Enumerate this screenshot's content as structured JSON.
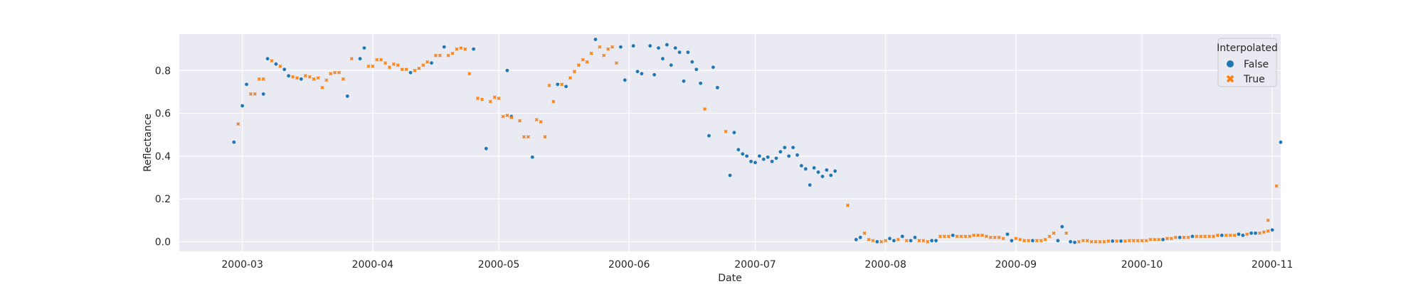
{
  "chart_data": {
    "type": "scatter",
    "title": "",
    "xlabel": "Date",
    "ylabel": "Reflectance",
    "xlim": [
      "2000-02-15",
      "2000-11-03"
    ],
    "ylim": [
      -0.045,
      0.97
    ],
    "grid": true,
    "x_ticks": [
      "2000-03",
      "2000-04",
      "2000-05",
      "2000-06",
      "2000-07",
      "2000-08",
      "2000-09",
      "2000-10",
      "2000-11"
    ],
    "y_ticks": [
      "0.0",
      "0.2",
      "0.4",
      "0.6",
      "0.8"
    ],
    "legend": {
      "title": "Interpolated",
      "position": "top-right"
    },
    "series": [
      {
        "name": "False",
        "color": "#1f77b4",
        "marker": "circle",
        "points": [
          [
            "2000-02-28",
            0.465
          ],
          [
            "2000-03-01",
            0.635
          ],
          [
            "2000-03-02",
            0.735
          ],
          [
            "2000-03-06",
            0.69
          ],
          [
            "2000-03-07",
            0.855
          ],
          [
            "2000-03-09",
            0.83
          ],
          [
            "2000-03-11",
            0.805
          ],
          [
            "2000-03-12",
            0.775
          ],
          [
            "2000-03-15",
            0.76
          ],
          [
            "2000-03-26",
            0.68
          ],
          [
            "2000-03-29",
            0.855
          ],
          [
            "2000-03-30",
            0.905
          ],
          [
            "2000-04-10",
            0.79
          ],
          [
            "2000-04-15",
            0.835
          ],
          [
            "2000-04-18",
            0.91
          ],
          [
            "2000-04-25",
            0.9
          ],
          [
            "2000-04-28",
            0.435
          ],
          [
            "2000-05-03",
            0.8
          ],
          [
            "2000-05-04",
            0.585
          ],
          [
            "2000-05-09",
            0.395
          ],
          [
            "2000-05-15",
            0.735
          ],
          [
            "2000-05-17",
            0.725
          ],
          [
            "2000-05-24",
            0.945
          ],
          [
            "2000-05-30",
            0.91
          ],
          [
            "2000-05-31",
            0.755
          ],
          [
            "2000-06-02",
            0.915
          ],
          [
            "2000-06-03",
            0.795
          ],
          [
            "2000-06-04",
            0.785
          ],
          [
            "2000-06-06",
            0.915
          ],
          [
            "2000-06-07",
            0.78
          ],
          [
            "2000-06-08",
            0.905
          ],
          [
            "2000-06-09",
            0.855
          ],
          [
            "2000-06-10",
            0.92
          ],
          [
            "2000-06-11",
            0.825
          ],
          [
            "2000-06-12",
            0.905
          ],
          [
            "2000-06-13",
            0.885
          ],
          [
            "2000-06-14",
            0.75
          ],
          [
            "2000-06-15",
            0.885
          ],
          [
            "2000-06-16",
            0.84
          ],
          [
            "2000-06-17",
            0.805
          ],
          [
            "2000-06-18",
            0.74
          ],
          [
            "2000-06-20",
            0.495
          ],
          [
            "2000-06-21",
            0.815
          ],
          [
            "2000-06-22",
            0.72
          ],
          [
            "2000-06-25",
            0.31
          ],
          [
            "2000-06-26",
            0.51
          ],
          [
            "2000-06-27",
            0.43
          ],
          [
            "2000-06-28",
            0.41
          ],
          [
            "2000-06-29",
            0.4
          ],
          [
            "2000-06-30",
            0.375
          ],
          [
            "2000-07-01",
            0.37
          ],
          [
            "2000-07-02",
            0.4
          ],
          [
            "2000-07-03",
            0.385
          ],
          [
            "2000-07-04",
            0.395
          ],
          [
            "2000-07-05",
            0.375
          ],
          [
            "2000-07-06",
            0.39
          ],
          [
            "2000-07-07",
            0.42
          ],
          [
            "2000-07-08",
            0.44
          ],
          [
            "2000-07-09",
            0.4
          ],
          [
            "2000-07-10",
            0.44
          ],
          [
            "2000-07-11",
            0.405
          ],
          [
            "2000-07-12",
            0.355
          ],
          [
            "2000-07-13",
            0.34
          ],
          [
            "2000-07-14",
            0.265
          ],
          [
            "2000-07-15",
            0.345
          ],
          [
            "2000-07-16",
            0.325
          ],
          [
            "2000-07-17",
            0.305
          ],
          [
            "2000-07-18",
            0.335
          ],
          [
            "2000-07-19",
            0.31
          ],
          [
            "2000-07-20",
            0.33
          ],
          [
            "2000-07-25",
            0.01
          ],
          [
            "2000-07-26",
            0.02
          ],
          [
            "2000-07-30",
            0.0
          ],
          [
            "2000-08-02",
            0.015
          ],
          [
            "2000-08-03",
            0.005
          ],
          [
            "2000-08-05",
            0.025
          ],
          [
            "2000-08-07",
            0.005
          ],
          [
            "2000-08-08",
            0.02
          ],
          [
            "2000-08-12",
            0.005
          ],
          [
            "2000-08-13",
            0.005
          ],
          [
            "2000-08-17",
            0.03
          ],
          [
            "2000-08-30",
            0.035
          ],
          [
            "2000-08-31",
            0.005
          ],
          [
            "2000-09-05",
            0.005
          ],
          [
            "2000-09-11",
            0.005
          ],
          [
            "2000-09-12",
            0.07
          ],
          [
            "2000-09-14",
            0.0
          ],
          [
            "2000-09-15",
            -0.003
          ],
          [
            "2000-09-24",
            0.003
          ],
          [
            "2000-09-26",
            0.003
          ],
          [
            "2000-10-06",
            0.01
          ],
          [
            "2000-10-10",
            0.02
          ],
          [
            "2000-10-13",
            0.025
          ],
          [
            "2000-10-20",
            0.03
          ],
          [
            "2000-10-24",
            0.035
          ],
          [
            "2000-10-25",
            0.03
          ],
          [
            "2000-10-27",
            0.04
          ],
          [
            "2000-10-28",
            0.04
          ],
          [
            "2000-11-01",
            0.055
          ],
          [
            "2000-11-03",
            0.465
          ]
        ]
      },
      {
        "name": "True",
        "color": "#ff7f0e",
        "marker": "x",
        "points": [
          [
            "2000-02-29",
            0.55
          ],
          [
            "2000-03-03",
            0.69
          ],
          [
            "2000-03-04",
            0.69
          ],
          [
            "2000-03-05",
            0.76
          ],
          [
            "2000-03-06",
            0.76
          ],
          [
            "2000-03-08",
            0.845
          ],
          [
            "2000-03-10",
            0.82
          ],
          [
            "2000-03-13",
            0.77
          ],
          [
            "2000-03-14",
            0.765
          ],
          [
            "2000-03-16",
            0.775
          ],
          [
            "2000-03-17",
            0.77
          ],
          [
            "2000-03-18",
            0.76
          ],
          [
            "2000-03-19",
            0.765
          ],
          [
            "2000-03-20",
            0.72
          ],
          [
            "2000-03-21",
            0.755
          ],
          [
            "2000-03-22",
            0.785
          ],
          [
            "2000-03-23",
            0.79
          ],
          [
            "2000-03-24",
            0.79
          ],
          [
            "2000-03-25",
            0.76
          ],
          [
            "2000-03-27",
            0.855
          ],
          [
            "2000-03-31",
            0.82
          ],
          [
            "2000-04-01",
            0.82
          ],
          [
            "2000-04-02",
            0.85
          ],
          [
            "2000-04-03",
            0.85
          ],
          [
            "2000-04-04",
            0.835
          ],
          [
            "2000-04-05",
            0.815
          ],
          [
            "2000-04-06",
            0.83
          ],
          [
            "2000-04-07",
            0.825
          ],
          [
            "2000-04-08",
            0.805
          ],
          [
            "2000-04-09",
            0.805
          ],
          [
            "2000-04-11",
            0.8
          ],
          [
            "2000-04-12",
            0.81
          ],
          [
            "2000-04-13",
            0.825
          ],
          [
            "2000-04-14",
            0.84
          ],
          [
            "2000-04-16",
            0.87
          ],
          [
            "2000-04-17",
            0.87
          ],
          [
            "2000-04-19",
            0.87
          ],
          [
            "2000-04-20",
            0.88
          ],
          [
            "2000-04-21",
            0.9
          ],
          [
            "2000-04-22",
            0.905
          ],
          [
            "2000-04-23",
            0.9
          ],
          [
            "2000-04-24",
            0.785
          ],
          [
            "2000-04-26",
            0.67
          ],
          [
            "2000-04-27",
            0.665
          ],
          [
            "2000-04-29",
            0.655
          ],
          [
            "2000-04-30",
            0.675
          ],
          [
            "2000-05-01",
            0.67
          ],
          [
            "2000-05-02",
            0.585
          ],
          [
            "2000-05-03",
            0.59
          ],
          [
            "2000-05-04",
            0.58
          ],
          [
            "2000-05-06",
            0.565
          ],
          [
            "2000-05-07",
            0.49
          ],
          [
            "2000-05-08",
            0.49
          ],
          [
            "2000-05-10",
            0.57
          ],
          [
            "2000-05-11",
            0.56
          ],
          [
            "2000-05-12",
            0.49
          ],
          [
            "2000-05-13",
            0.73
          ],
          [
            "2000-05-14",
            0.655
          ],
          [
            "2000-05-16",
            0.735
          ],
          [
            "2000-05-18",
            0.765
          ],
          [
            "2000-05-19",
            0.795
          ],
          [
            "2000-05-20",
            0.825
          ],
          [
            "2000-05-21",
            0.85
          ],
          [
            "2000-05-22",
            0.84
          ],
          [
            "2000-05-23",
            0.88
          ],
          [
            "2000-05-25",
            0.91
          ],
          [
            "2000-05-26",
            0.87
          ],
          [
            "2000-05-27",
            0.9
          ],
          [
            "2000-05-28",
            0.91
          ],
          [
            "2000-05-29",
            0.835
          ],
          [
            "2000-06-19",
            0.62
          ],
          [
            "2000-06-24",
            0.515
          ],
          [
            "2000-07-23",
            0.17
          ],
          [
            "2000-07-27",
            0.04
          ],
          [
            "2000-07-28",
            0.01
          ],
          [
            "2000-07-29",
            0.005
          ],
          [
            "2000-07-31",
            0.0
          ],
          [
            "2000-08-01",
            0.005
          ],
          [
            "2000-08-04",
            0.01
          ],
          [
            "2000-08-06",
            0.005
          ],
          [
            "2000-08-09",
            0.005
          ],
          [
            "2000-08-10",
            0.005
          ],
          [
            "2000-08-11",
            0.0
          ],
          [
            "2000-08-14",
            0.025
          ],
          [
            "2000-08-15",
            0.025
          ],
          [
            "2000-08-16",
            0.025
          ],
          [
            "2000-08-18",
            0.025
          ],
          [
            "2000-08-19",
            0.025
          ],
          [
            "2000-08-20",
            0.025
          ],
          [
            "2000-08-21",
            0.025
          ],
          [
            "2000-08-22",
            0.03
          ],
          [
            "2000-08-23",
            0.03
          ],
          [
            "2000-08-24",
            0.03
          ],
          [
            "2000-08-25",
            0.025
          ],
          [
            "2000-08-26",
            0.02
          ],
          [
            "2000-08-27",
            0.02
          ],
          [
            "2000-08-28",
            0.02
          ],
          [
            "2000-08-29",
            0.015
          ],
          [
            "2000-09-01",
            0.015
          ],
          [
            "2000-09-02",
            0.01
          ],
          [
            "2000-09-03",
            0.005
          ],
          [
            "2000-09-04",
            0.005
          ],
          [
            "2000-09-06",
            0.005
          ],
          [
            "2000-09-07",
            0.005
          ],
          [
            "2000-09-08",
            0.01
          ],
          [
            "2000-09-09",
            0.025
          ],
          [
            "2000-09-10",
            0.04
          ],
          [
            "2000-09-13",
            0.04
          ],
          [
            "2000-09-16",
            0.0
          ],
          [
            "2000-09-17",
            0.005
          ],
          [
            "2000-09-18",
            0.005
          ],
          [
            "2000-09-19",
            0.0
          ],
          [
            "2000-09-20",
            0.0
          ],
          [
            "2000-09-21",
            0.0
          ],
          [
            "2000-09-22",
            0.0
          ],
          [
            "2000-09-23",
            0.003
          ],
          [
            "2000-09-25",
            0.003
          ],
          [
            "2000-09-27",
            0.003
          ],
          [
            "2000-09-28",
            0.005
          ],
          [
            "2000-09-29",
            0.005
          ],
          [
            "2000-09-30",
            0.005
          ],
          [
            "2000-10-01",
            0.005
          ],
          [
            "2000-10-02",
            0.005
          ],
          [
            "2000-10-03",
            0.01
          ],
          [
            "2000-10-04",
            0.01
          ],
          [
            "2000-10-05",
            0.01
          ],
          [
            "2000-10-07",
            0.015
          ],
          [
            "2000-10-08",
            0.015
          ],
          [
            "2000-10-09",
            0.02
          ],
          [
            "2000-10-11",
            0.02
          ],
          [
            "2000-10-12",
            0.02
          ],
          [
            "2000-10-14",
            0.025
          ],
          [
            "2000-10-15",
            0.025
          ],
          [
            "2000-10-16",
            0.025
          ],
          [
            "2000-10-17",
            0.025
          ],
          [
            "2000-10-18",
            0.025
          ],
          [
            "2000-10-19",
            0.03
          ],
          [
            "2000-10-21",
            0.03
          ],
          [
            "2000-10-22",
            0.03
          ],
          [
            "2000-10-23",
            0.03
          ],
          [
            "2000-10-26",
            0.035
          ],
          [
            "2000-10-29",
            0.04
          ],
          [
            "2000-10-30",
            0.045
          ],
          [
            "2000-10-31",
            0.05
          ],
          [
            "2000-10-31",
            0.1
          ],
          [
            "2000-11-02",
            0.26
          ]
        ]
      }
    ]
  }
}
